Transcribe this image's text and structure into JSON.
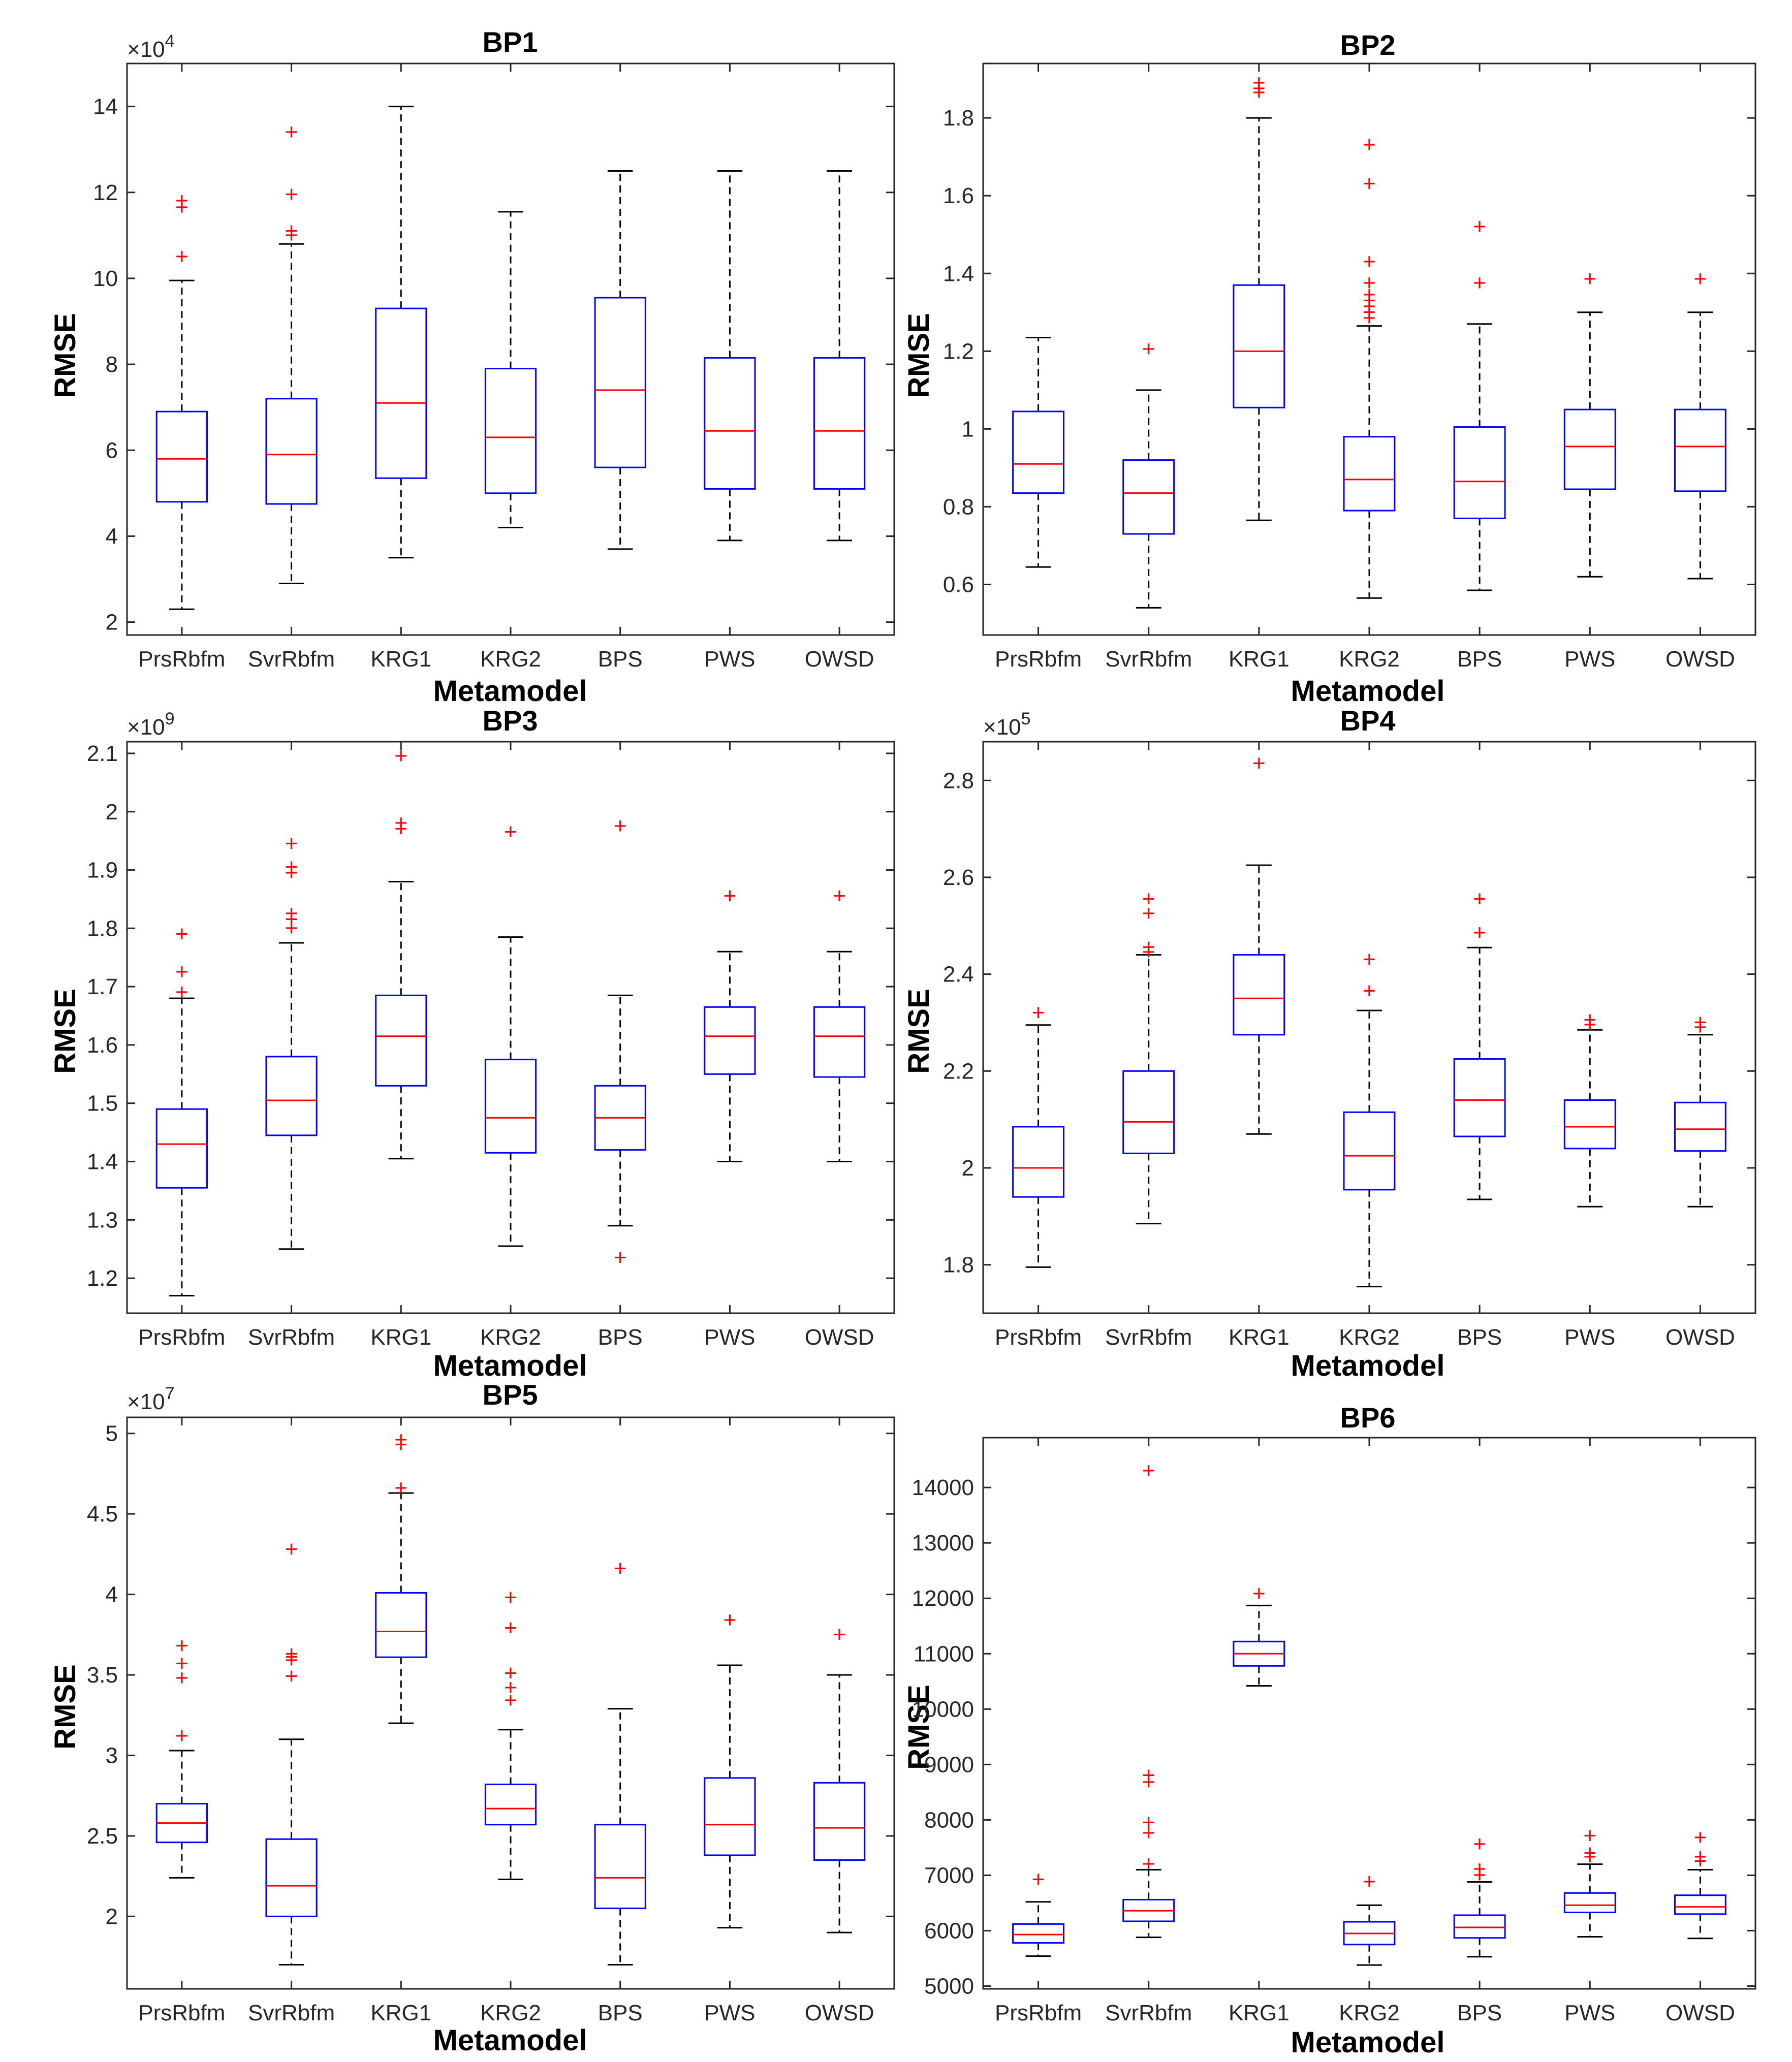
{
  "figure": {
    "background": "#ffffff",
    "box_color": "#0000ff",
    "median_color": "#ff0000",
    "whisker_color": "#000000",
    "outlier_color": "#ff0000",
    "axis_color": "#262626"
  },
  "chart_data": [
    {
      "type": "box",
      "title": "BP1",
      "xlabel": "Metamodel",
      "ylabel": "RMSE",
      "exponent_label": "×10",
      "exponent": "4",
      "ylim": [
        1.7,
        15
      ],
      "yticks": [
        2,
        4,
        6,
        8,
        10,
        12,
        14
      ],
      "ytick_labels": [
        "2",
        "4",
        "6",
        "8",
        "10",
        "12",
        "14"
      ],
      "categories": [
        "PrsRbfm",
        "SvrRbfm",
        "KRG1",
        "KRG2",
        "BPS",
        "PWS",
        "OWSD"
      ],
      "boxes": [
        {
          "low": 2.3,
          "q1": 4.8,
          "median": 5.8,
          "q3": 6.9,
          "high": 9.95,
          "outliers": [
            10.5,
            11.65,
            11.8
          ]
        },
        {
          "low": 2.9,
          "q1": 4.75,
          "median": 5.9,
          "q3": 7.2,
          "high": 10.8,
          "outliers": [
            11.0,
            11.1,
            11.95,
            13.4
          ]
        },
        {
          "low": 3.5,
          "q1": 5.35,
          "median": 7.1,
          "q3": 9.3,
          "high": 14.0,
          "outliers": []
        },
        {
          "low": 4.2,
          "q1": 5.0,
          "median": 6.3,
          "q3": 7.9,
          "high": 11.55,
          "outliers": []
        },
        {
          "low": 3.7,
          "q1": 5.6,
          "median": 7.4,
          "q3": 9.55,
          "high": 12.5,
          "outliers": []
        },
        {
          "low": 3.9,
          "q1": 5.1,
          "median": 6.45,
          "q3": 8.15,
          "high": 12.5,
          "outliers": []
        },
        {
          "low": 3.9,
          "q1": 5.1,
          "median": 6.45,
          "q3": 8.15,
          "high": 12.5,
          "outliers": []
        }
      ]
    },
    {
      "type": "box",
      "title": "BP2",
      "xlabel": "Metamodel",
      "ylabel": "RMSE",
      "exponent_label": "",
      "exponent": "",
      "ylim": [
        0.47,
        1.94
      ],
      "yticks": [
        0.6,
        0.8,
        1.0,
        1.2,
        1.4,
        1.6,
        1.8
      ],
      "ytick_labels": [
        "0.6",
        "0.8",
        "1",
        "1.2",
        "1.4",
        "1.6",
        "1.8"
      ],
      "categories": [
        "PrsRbfm",
        "SvrRbfm",
        "KRG1",
        "KRG2",
        "BPS",
        "PWS",
        "OWSD"
      ],
      "boxes": [
        {
          "low": 0.645,
          "q1": 0.835,
          "median": 0.91,
          "q3": 1.045,
          "high": 1.235,
          "outliers": []
        },
        {
          "low": 0.54,
          "q1": 0.73,
          "median": 0.835,
          "q3": 0.92,
          "high": 1.1,
          "outliers": [
            1.205
          ]
        },
        {
          "low": 0.765,
          "q1": 1.055,
          "median": 1.2,
          "q3": 1.37,
          "high": 1.8,
          "outliers": [
            1.865,
            1.875,
            1.89
          ]
        },
        {
          "low": 0.565,
          "q1": 0.79,
          "median": 0.87,
          "q3": 0.98,
          "high": 1.265,
          "outliers": [
            1.285,
            1.3,
            1.315,
            1.33,
            1.345,
            1.375,
            1.43,
            1.63,
            1.73
          ]
        },
        {
          "low": 0.585,
          "q1": 0.77,
          "median": 0.865,
          "q3": 1.005,
          "high": 1.27,
          "outliers": [
            1.375,
            1.52
          ]
        },
        {
          "low": 0.62,
          "q1": 0.845,
          "median": 0.955,
          "q3": 1.05,
          "high": 1.3,
          "outliers": [
            1.385
          ]
        },
        {
          "low": 0.615,
          "q1": 0.84,
          "median": 0.955,
          "q3": 1.05,
          "high": 1.3,
          "outliers": [
            1.385
          ]
        }
      ]
    },
    {
      "type": "box",
      "title": "BP3",
      "xlabel": "Metamodel",
      "ylabel": "RMSE",
      "exponent_label": "×10",
      "exponent": "9",
      "ylim": [
        1.14,
        2.12
      ],
      "yticks": [
        1.2,
        1.3,
        1.4,
        1.5,
        1.6,
        1.7,
        1.8,
        1.9,
        2.0,
        2.1
      ],
      "ytick_labels": [
        "1.2",
        "1.3",
        "1.4",
        "1.5",
        "1.6",
        "1.7",
        "1.8",
        "1.9",
        "2",
        "2.1"
      ],
      "categories": [
        "PrsRbfm",
        "SvrRbfm",
        "KRG1",
        "KRG2",
        "BPS",
        "PWS",
        "OWSD"
      ],
      "boxes": [
        {
          "low": 1.17,
          "q1": 1.355,
          "median": 1.43,
          "q3": 1.49,
          "high": 1.68,
          "outliers": [
            1.69,
            1.725,
            1.79
          ]
        },
        {
          "low": 1.25,
          "q1": 1.445,
          "median": 1.505,
          "q3": 1.58,
          "high": 1.775,
          "outliers": [
            1.8,
            1.815,
            1.825,
            1.895,
            1.905,
            1.945
          ]
        },
        {
          "low": 1.405,
          "q1": 1.53,
          "median": 1.615,
          "q3": 1.685,
          "high": 1.88,
          "outliers": [
            1.97,
            1.98,
            2.095
          ]
        },
        {
          "low": 1.255,
          "q1": 1.415,
          "median": 1.475,
          "q3": 1.575,
          "high": 1.785,
          "outliers": [
            1.965
          ]
        },
        {
          "low": 1.29,
          "q1": 1.42,
          "median": 1.475,
          "q3": 1.53,
          "high": 1.685,
          "outliers": [
            1.235,
            1.975
          ]
        },
        {
          "low": 1.4,
          "q1": 1.55,
          "median": 1.615,
          "q3": 1.665,
          "high": 1.76,
          "outliers": [
            1.855
          ]
        },
        {
          "low": 1.4,
          "q1": 1.545,
          "median": 1.615,
          "q3": 1.665,
          "high": 1.76,
          "outliers": [
            1.855
          ]
        }
      ]
    },
    {
      "type": "box",
      "title": "BP4",
      "xlabel": "Metamodel",
      "ylabel": "RMSE",
      "exponent_label": "×10",
      "exponent": "5",
      "ylim": [
        1.7,
        2.88
      ],
      "yticks": [
        1.8,
        2.0,
        2.2,
        2.4,
        2.6,
        2.8
      ],
      "ytick_labels": [
        "1.8",
        "2",
        "2.2",
        "2.4",
        "2.6",
        "2.8"
      ],
      "categories": [
        "PrsRbfm",
        "SvrRbfm",
        "KRG1",
        "KRG2",
        "BPS",
        "PWS",
        "OWSD"
      ],
      "boxes": [
        {
          "low": 1.795,
          "q1": 1.94,
          "median": 2.0,
          "q3": 2.085,
          "high": 2.295,
          "outliers": [
            2.32
          ]
        },
        {
          "low": 1.885,
          "q1": 2.03,
          "median": 2.095,
          "q3": 2.2,
          "high": 2.44,
          "outliers": [
            2.445,
            2.455,
            2.525,
            2.555
          ]
        },
        {
          "low": 2.07,
          "q1": 2.275,
          "median": 2.35,
          "q3": 2.44,
          "high": 2.625,
          "outliers": [
            2.835
          ]
        },
        {
          "low": 1.755,
          "q1": 1.955,
          "median": 2.025,
          "q3": 2.115,
          "high": 2.325,
          "outliers": [
            2.365,
            2.43
          ]
        },
        {
          "low": 1.935,
          "q1": 2.065,
          "median": 2.14,
          "q3": 2.225,
          "high": 2.455,
          "outliers": [
            2.485,
            2.555
          ]
        },
        {
          "low": 1.92,
          "q1": 2.04,
          "median": 2.085,
          "q3": 2.14,
          "high": 2.285,
          "outliers": [
            2.295,
            2.305
          ]
        },
        {
          "low": 1.92,
          "q1": 2.035,
          "median": 2.08,
          "q3": 2.135,
          "high": 2.275,
          "outliers": [
            2.29,
            2.3
          ]
        }
      ]
    },
    {
      "type": "box",
      "title": "BP5",
      "xlabel": "Metamodel",
      "ylabel": "RMSE",
      "exponent_label": "×10",
      "exponent": "7",
      "ylim": [
        1.55,
        5.1
      ],
      "yticks": [
        2,
        2.5,
        3,
        3.5,
        4,
        4.5,
        5
      ],
      "ytick_labels": [
        "2",
        "2.5",
        "3",
        "3.5",
        "4",
        "4.5",
        "5"
      ],
      "categories": [
        "PrsRbfm",
        "SvrRbfm",
        "KRG1",
        "KRG2",
        "BPS",
        "PWS",
        "OWSD"
      ],
      "boxes": [
        {
          "low": 2.24,
          "q1": 2.46,
          "median": 2.58,
          "q3": 2.7,
          "high": 3.03,
          "outliers": [
            3.12,
            3.48,
            3.57,
            3.68
          ]
        },
        {
          "low": 1.7,
          "q1": 2.0,
          "median": 2.19,
          "q3": 2.48,
          "high": 3.1,
          "outliers": [
            3.49,
            3.59,
            3.61,
            3.63,
            4.28
          ]
        },
        {
          "low": 3.2,
          "q1": 3.61,
          "median": 3.77,
          "q3": 4.01,
          "high": 4.63,
          "outliers": [
            4.66,
            4.93,
            4.96
          ]
        },
        {
          "low": 2.23,
          "q1": 2.57,
          "median": 2.67,
          "q3": 2.82,
          "high": 3.16,
          "outliers": [
            3.34,
            3.42,
            3.51,
            3.79,
            3.98
          ]
        },
        {
          "low": 1.7,
          "q1": 2.05,
          "median": 2.24,
          "q3": 2.57,
          "high": 3.29,
          "outliers": [
            4.16
          ]
        },
        {
          "low": 1.93,
          "q1": 2.38,
          "median": 2.57,
          "q3": 2.86,
          "high": 3.56,
          "outliers": [
            3.84
          ]
        },
        {
          "low": 1.9,
          "q1": 2.35,
          "median": 2.55,
          "q3": 2.83,
          "high": 3.5,
          "outliers": [
            3.75
          ]
        }
      ]
    },
    {
      "type": "box",
      "title": "BP6",
      "xlabel": "Metamodel",
      "ylabel": "RMSE",
      "exponent_label": "",
      "exponent": "",
      "ylim": [
        4950,
        14900
      ],
      "yticks": [
        5000,
        6000,
        7000,
        8000,
        9000,
        10000,
        11000,
        12000,
        13000,
        14000
      ],
      "ytick_labels": [
        "5000",
        "6000",
        "7000",
        "8000",
        "9000",
        "10000",
        "11000",
        "12000",
        "13000",
        "14000"
      ],
      "categories": [
        "PrsRbfm",
        "SvrRbfm",
        "KRG1",
        "KRG2",
        "BPS",
        "PWS",
        "OWSD"
      ],
      "boxes": [
        {
          "low": 5540,
          "q1": 5780,
          "median": 5930,
          "q3": 6120,
          "high": 6520,
          "outliers": [
            6920
          ]
        },
        {
          "low": 5880,
          "q1": 6170,
          "median": 6360,
          "q3": 6560,
          "high": 7100,
          "outliers": [
            7200,
            7760,
            7950,
            8680,
            8800,
            14300
          ]
        },
        {
          "low": 10420,
          "q1": 10780,
          "median": 11000,
          "q3": 11220,
          "high": 11870,
          "outliers": [
            12080
          ]
        },
        {
          "low": 5380,
          "q1": 5750,
          "median": 5950,
          "q3": 6160,
          "high": 6460,
          "outliers": [
            6880
          ]
        },
        {
          "low": 5530,
          "q1": 5870,
          "median": 6060,
          "q3": 6280,
          "high": 6880,
          "outliers": [
            7000,
            7110,
            7560
          ]
        },
        {
          "low": 5890,
          "q1": 6330,
          "median": 6460,
          "q3": 6680,
          "high": 7200,
          "outliers": [
            7330,
            7400,
            7710
          ]
        },
        {
          "low": 5860,
          "q1": 6300,
          "median": 6430,
          "q3": 6640,
          "high": 7100,
          "outliers": [
            7250,
            7330,
            7680
          ]
        }
      ]
    }
  ]
}
